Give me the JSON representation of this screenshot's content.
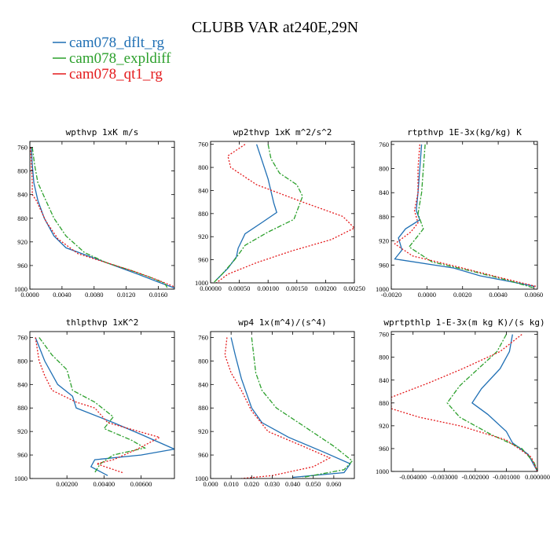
{
  "figure": {
    "title": "CLUBB VAR at240E,29N",
    "legend": [
      {
        "label": "cam078_dflt_rg",
        "color": "#1f6fb4",
        "dash": "solid"
      },
      {
        "label": "cam078_expldiff",
        "color": "#2ca02c",
        "dash": "dashdot"
      },
      {
        "label": "cam078_qt1_rg",
        "color": "#e41a1c",
        "dash": "dotted"
      }
    ]
  },
  "chart_data": [
    {
      "type": "line",
      "title": "wpthvp  1xK m/s",
      "xlim": [
        0,
        0.018
      ],
      "ylim": [
        1000,
        750
      ],
      "xticks": [
        0,
        0.004,
        0.008,
        0.012,
        0.016
      ],
      "xticklabels": [
        "0.0000",
        "0.0040",
        "0.0080",
        "0.0120",
        "0.0160"
      ],
      "yticks": [
        760,
        800,
        840,
        880,
        920,
        960,
        1000
      ],
      "series": [
        {
          "name": "cam078_dflt_rg",
          "points": [
            [
              0.0002,
              760
            ],
            [
              0.0003,
              790
            ],
            [
              0.0005,
              820
            ],
            [
              0.001,
              850
            ],
            [
              0.0018,
              880
            ],
            [
              0.003,
              910
            ],
            [
              0.0045,
              930
            ],
            [
              0.0075,
              945
            ],
            [
              0.0105,
              960
            ],
            [
              0.0135,
              975
            ],
            [
              0.016,
              988
            ],
            [
              0.018,
              998
            ]
          ]
        },
        {
          "name": "cam078_expldiff",
          "points": [
            [
              0.0003,
              760
            ],
            [
              0.0006,
              790
            ],
            [
              0.001,
              820
            ],
            [
              0.002,
              850
            ],
            [
              0.003,
              880
            ],
            [
              0.0045,
              910
            ],
            [
              0.0068,
              938
            ],
            [
              0.0095,
              955
            ],
            [
              0.0125,
              968
            ],
            [
              0.015,
              980
            ],
            [
              0.0168,
              990
            ],
            [
              0.0172,
              1000
            ]
          ]
        },
        {
          "name": "cam078_qt1_rg",
          "points": [
            [
              0.0001,
              760
            ],
            [
              0.0002,
              790
            ],
            [
              0.0003,
              820
            ],
            [
              0.0003,
              840
            ],
            [
              0.0008,
              850
            ],
            [
              0.002,
              885
            ],
            [
              0.0035,
              915
            ],
            [
              0.006,
              940
            ],
            [
              0.0095,
              955
            ],
            [
              0.013,
              970
            ],
            [
              0.016,
              985
            ],
            [
              0.018,
              996
            ]
          ]
        }
      ]
    },
    {
      "type": "line",
      "title": "wp2thvp  1xK m^2/s^2",
      "xlim": [
        0,
        0.0025
      ],
      "ylim": [
        1000,
        755
      ],
      "xticks": [
        0,
        0.0005,
        0.001,
        0.0015,
        0.002,
        0.0025
      ],
      "xticklabels": [
        "0.00000",
        "0.00050",
        "0.00100",
        "0.00150",
        "0.00200",
        "0.00250"
      ],
      "yticks": [
        760,
        800,
        840,
        880,
        920,
        960,
        1000
      ],
      "series": [
        {
          "name": "cam078_dflt_rg",
          "points": [
            [
              0.0008,
              760
            ],
            [
              0.0009,
              790
            ],
            [
              0.001,
              820
            ],
            [
              0.0011,
              862
            ],
            [
              0.00115,
              878
            ],
            [
              0.0009,
              895
            ],
            [
              0.0006,
              915
            ],
            [
              0.00048,
              940
            ],
            [
              0.00045,
              955
            ],
            [
              0.0003,
              975
            ],
            [
              0.0001,
              995
            ]
          ]
        },
        {
          "name": "cam078_expldiff",
          "points": [
            [
              0.001,
              760
            ],
            [
              0.00105,
              785
            ],
            [
              0.0012,
              810
            ],
            [
              0.0015,
              830
            ],
            [
              0.0016,
              850
            ],
            [
              0.00145,
              890
            ],
            [
              0.001,
              912
            ],
            [
              0.0006,
              935
            ],
            [
              0.00042,
              960
            ],
            [
              0.0002,
              985
            ],
            [
              5e-05,
              1000
            ]
          ]
        },
        {
          "name": "cam078_qt1_rg",
          "points": [
            [
              0.0006,
              760
            ],
            [
              0.0003,
              780
            ],
            [
              0.00035,
              800
            ],
            [
              0.0008,
              830
            ],
            [
              0.0016,
              860
            ],
            [
              0.0023,
              885
            ],
            [
              0.0025,
              905
            ],
            [
              0.0021,
              925
            ],
            [
              0.0014,
              945
            ],
            [
              0.0008,
              965
            ],
            [
              0.0003,
              985
            ],
            [
              0.0001,
              1000
            ]
          ]
        }
      ]
    },
    {
      "type": "line",
      "title": "rtpthvp  1E-3x(kg/kg) K",
      "xlim": [
        -0.002,
        0.0062
      ],
      "ylim": [
        1000,
        755
      ],
      "xticks": [
        -0.002,
        0,
        0.002,
        0.004,
        0.006
      ],
      "xticklabels": [
        "-0.0020",
        "0.0000",
        "0.0020",
        "0.0040",
        "0.0060"
      ],
      "yticks": [
        760,
        800,
        840,
        880,
        920,
        960,
        1000
      ],
      "series": [
        {
          "name": "cam078_dflt_rg",
          "points": [
            [
              -0.0003,
              760
            ],
            [
              -0.0004,
              800
            ],
            [
              -0.0005,
              840
            ],
            [
              -0.0006,
              870
            ],
            [
              -0.0004,
              885
            ],
            [
              -0.0012,
              900
            ],
            [
              -0.0016,
              915
            ],
            [
              -0.0014,
              935
            ],
            [
              -0.0018,
              950
            ],
            [
              0.0015,
              965
            ],
            [
              0.003,
              978
            ],
            [
              0.006,
              995
            ]
          ]
        },
        {
          "name": "cam078_expldiff",
          "points": [
            [
              -0.0001,
              760
            ],
            [
              -0.0002,
              800
            ],
            [
              -0.0003,
              840
            ],
            [
              -0.0005,
              875
            ],
            [
              -0.0002,
              900
            ],
            [
              -0.0006,
              915
            ],
            [
              -0.001,
              930
            ],
            [
              0.0003,
              955
            ],
            [
              0.0025,
              970
            ],
            [
              0.0045,
              985
            ],
            [
              0.006,
              998
            ]
          ]
        },
        {
          "name": "cam078_qt1_rg",
          "points": [
            [
              -0.0004,
              760
            ],
            [
              -0.0005,
              800
            ],
            [
              -0.0005,
              840
            ],
            [
              -0.0007,
              870
            ],
            [
              -0.0005,
              890
            ],
            [
              -0.0009,
              905
            ],
            [
              -0.0018,
              925
            ],
            [
              -0.0008,
              945
            ],
            [
              0.002,
              965
            ],
            [
              0.004,
              980
            ],
            [
              0.0062,
              996
            ]
          ]
        }
      ]
    },
    {
      "type": "line",
      "title": "thlpthvp  1xK^2",
      "xlim": [
        0,
        0.0078
      ],
      "ylim": [
        1000,
        750
      ],
      "xticks": [
        0.002,
        0.004,
        0.006
      ],
      "xticklabels": [
        "0.00200",
        "0.00400",
        "0.00600"
      ],
      "yticks": [
        760,
        800,
        840,
        880,
        920,
        960,
        1000
      ],
      "series": [
        {
          "name": "cam078_dflt_rg",
          "points": [
            [
              0.0003,
              760
            ],
            [
              0.0008,
              800
            ],
            [
              0.0015,
              840
            ],
            [
              0.0023,
              860
            ],
            [
              0.0025,
              880
            ],
            [
              0.0045,
              905
            ],
            [
              0.006,
              925
            ],
            [
              0.0078,
              950
            ],
            [
              0.006,
              960
            ],
            [
              0.0035,
              968
            ],
            [
              0.0033,
              980
            ],
            [
              0.0042,
              995
            ]
          ]
        },
        {
          "name": "cam078_expldiff",
          "points": [
            [
              0.0005,
              760
            ],
            [
              0.0012,
              790
            ],
            [
              0.002,
              815
            ],
            [
              0.0023,
              850
            ],
            [
              0.0035,
              870
            ],
            [
              0.0045,
              895
            ],
            [
              0.004,
              915
            ],
            [
              0.0055,
              935
            ],
            [
              0.0062,
              948
            ],
            [
              0.0045,
              960
            ],
            [
              0.0038,
              975
            ],
            [
              0.0035,
              990
            ]
          ]
        },
        {
          "name": "cam078_qt1_rg",
          "points": [
            [
              0.0003,
              760
            ],
            [
              0.0005,
              800
            ],
            [
              0.0008,
              825
            ],
            [
              0.0012,
              850
            ],
            [
              0.0025,
              870
            ],
            [
              0.0035,
              880
            ],
            [
              0.0042,
              905
            ],
            [
              0.007,
              930
            ],
            [
              0.0058,
              950
            ],
            [
              0.0045,
              968
            ],
            [
              0.0036,
              975
            ],
            [
              0.005,
              990
            ]
          ]
        }
      ]
    },
    {
      "type": "line",
      "title": "wp4  1x(m^4)/(s^4)",
      "xlim": [
        0,
        0.07
      ],
      "ylim": [
        1000,
        750
      ],
      "xticks": [
        0,
        0.01,
        0.02,
        0.03,
        0.04,
        0.05,
        0.06
      ],
      "xticklabels": [
        "0.000",
        "0.010",
        "0.020",
        "0.030",
        "0.040",
        "0.050",
        "0.060"
      ],
      "yticks": [
        760,
        800,
        840,
        880,
        920,
        960,
        1000
      ],
      "series": [
        {
          "name": "cam078_dflt_rg",
          "points": [
            [
              0.01,
              760
            ],
            [
              0.012,
              790
            ],
            [
              0.015,
              830
            ],
            [
              0.018,
              860
            ],
            [
              0.02,
              880
            ],
            [
              0.025,
              905
            ],
            [
              0.038,
              930
            ],
            [
              0.055,
              955
            ],
            [
              0.068,
              975
            ],
            [
              0.065,
              990
            ],
            [
              0.04,
              998
            ]
          ]
        },
        {
          "name": "cam078_expldiff",
          "points": [
            [
              0.02,
              760
            ],
            [
              0.021,
              790
            ],
            [
              0.022,
              820
            ],
            [
              0.025,
              850
            ],
            [
              0.032,
              880
            ],
            [
              0.045,
              910
            ],
            [
              0.06,
              945
            ],
            [
              0.069,
              970
            ],
            [
              0.065,
              985
            ],
            [
              0.045,
              998
            ]
          ]
        },
        {
          "name": "cam078_qt1_rg",
          "points": [
            [
              0.008,
              760
            ],
            [
              0.007,
              790
            ],
            [
              0.01,
              820
            ],
            [
              0.015,
              850
            ],
            [
              0.02,
              885
            ],
            [
              0.028,
              920
            ],
            [
              0.045,
              945
            ],
            [
              0.058,
              965
            ],
            [
              0.05,
              980
            ],
            [
              0.03,
              995
            ],
            [
              0.015,
              1000
            ]
          ]
        }
      ]
    },
    {
      "type": "line",
      "title": "wprtpthlp  1-E-3x(m kg K)/(s kg)",
      "xlim": [
        -0.0047,
        0
      ],
      "ylim": [
        1000,
        755
      ],
      "xticks": [
        -0.004,
        -0.003,
        -0.002,
        -0.001,
        0
      ],
      "xticklabels": [
        "-0.004000",
        "-0.003000",
        "-0.002000",
        "-0.001000",
        "0.000000"
      ],
      "yticks": [
        760,
        800,
        840,
        880,
        920,
        960,
        1000
      ],
      "series": [
        {
          "name": "cam078_dflt_rg",
          "points": [
            [
              -0.0008,
              760
            ],
            [
              -0.0009,
              790
            ],
            [
              -0.0012,
              820
            ],
            [
              -0.0018,
              855
            ],
            [
              -0.0021,
              880
            ],
            [
              -0.0016,
              900
            ],
            [
              -0.001,
              930
            ],
            [
              -0.0008,
              950
            ],
            [
              -0.0003,
              970
            ],
            [
              -0.0001,
              990
            ],
            [
              0,
              1000
            ]
          ]
        },
        {
          "name": "cam078_expldiff",
          "points": [
            [
              -0.001,
              760
            ],
            [
              -0.0013,
              790
            ],
            [
              -0.0019,
              820
            ],
            [
              -0.0025,
              850
            ],
            [
              -0.0029,
              880
            ],
            [
              -0.0025,
              905
            ],
            [
              -0.0015,
              935
            ],
            [
              -0.0005,
              960
            ],
            [
              -0.0001,
              985
            ],
            [
              0,
              1000
            ]
          ]
        },
        {
          "name": "cam078_qt1_rg",
          "points": [
            [
              -0.0005,
              760
            ],
            [
              -0.0012,
              790
            ],
            [
              -0.0024,
              820
            ],
            [
              -0.0035,
              845
            ],
            [
              -0.0047,
              870
            ],
            [
              -0.0047,
              890
            ],
            [
              -0.0038,
              905
            ],
            [
              -0.0025,
              920
            ],
            [
              -0.001,
              945
            ],
            [
              -0.0002,
              975
            ],
            [
              0,
              1000
            ]
          ]
        }
      ]
    }
  ]
}
